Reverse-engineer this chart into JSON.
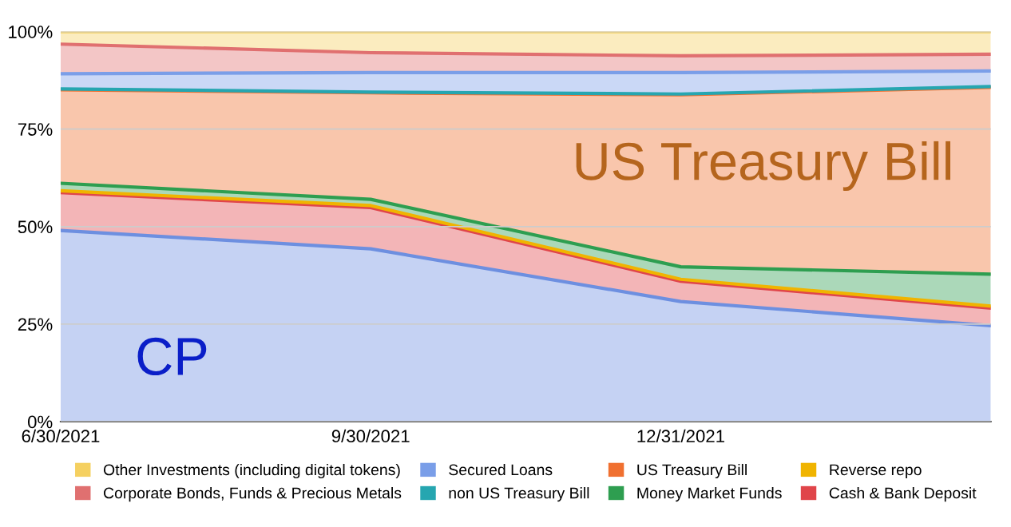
{
  "chart_data": {
    "type": "area",
    "stacked": true,
    "categories": [
      "6/30/2021",
      "9/30/2021",
      "12/31/2021",
      null
    ],
    "ylim": [
      0,
      100
    ],
    "yticks": [
      {
        "value": 0,
        "label": "0%"
      },
      {
        "value": 25,
        "label": "25%"
      },
      {
        "value": 50,
        "label": "50%"
      },
      {
        "value": 75,
        "label": "75%"
      },
      {
        "value": 100,
        "label": "100%"
      }
    ],
    "grid": "y",
    "legend": "bottom",
    "series": [
      {
        "color": "#6d8fe0",
        "values": [
          49.0,
          44.3,
          30.8,
          24.6
        ]
      },
      {
        "name": "Cash & Bank Deposit",
        "color": "#e0454a",
        "values": [
          9.7,
          10.6,
          5.2,
          4.5
        ]
      },
      {
        "name": "Reverse repo",
        "color": "#f0b400",
        "values": [
          0.5,
          0.5,
          0.5,
          0.5
        ]
      },
      {
        "name": "Money Market Funds",
        "color": "#2e9e50",
        "values": [
          1.9,
          1.6,
          3.2,
          8.2
        ]
      },
      {
        "name": "US Treasury Bill",
        "color": "#f07030",
        "values": [
          24.0,
          27.3,
          44.1,
          47.9
        ]
      },
      {
        "name": "non US Treasury Bill",
        "color": "#26a6b0",
        "values": [
          0.2,
          0.2,
          0.2,
          0.2
        ]
      },
      {
        "name": "Secured Loans",
        "color": "#7a9ee8",
        "values": [
          3.9,
          5.0,
          5.5,
          4.0
        ]
      },
      {
        "name": "Corporate Bonds, Funds & Precious Metals",
        "color": "#e07070",
        "values": [
          7.6,
          5.1,
          4.3,
          4.3
        ]
      },
      {
        "name": "Other Investments (including digital tokens)",
        "color": "#f5d060",
        "values": [
          3.2,
          5.4,
          6.2,
          5.8
        ]
      }
    ],
    "annotations": [
      "US Treasury Bill",
      "CP"
    ]
  }
}
